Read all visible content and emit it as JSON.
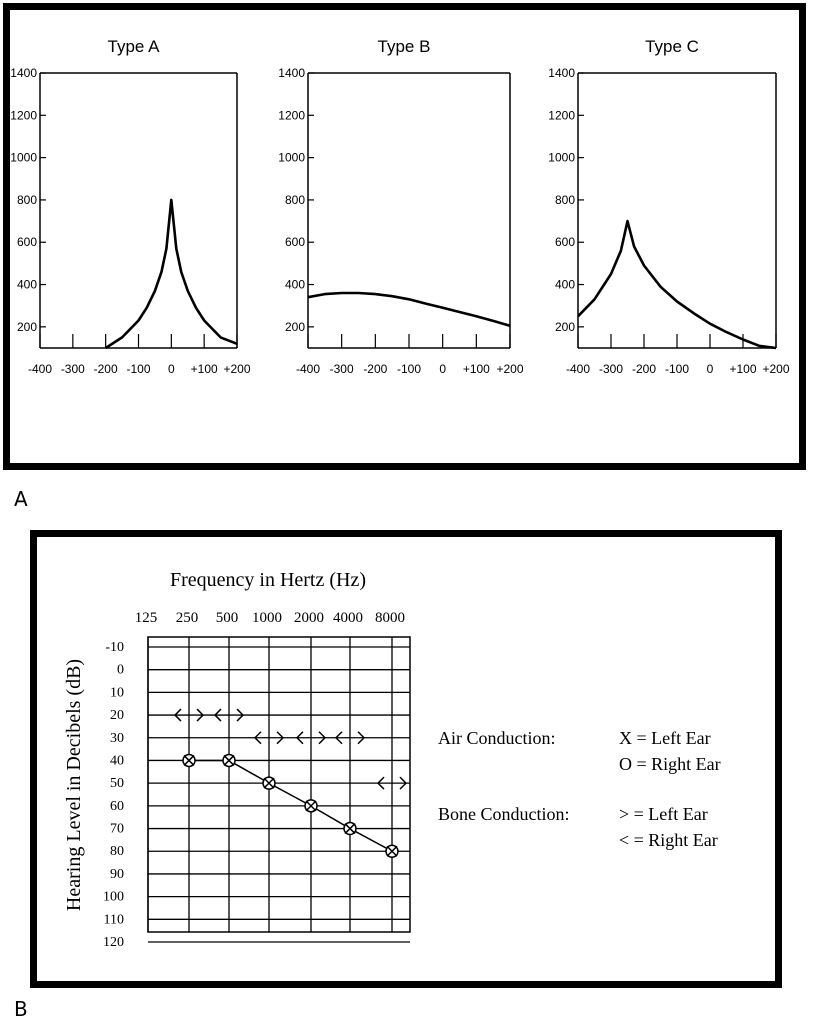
{
  "panel_labels": {
    "a": "A",
    "b": "B"
  },
  "chart_data": [
    {
      "type": "line",
      "title": "Type A",
      "x_ticks": [
        "-400",
        "-300",
        "-200",
        "-100",
        "0",
        "+100",
        "+200"
      ],
      "y_ticks": [
        "200",
        "400",
        "600",
        "800",
        "1000",
        "1200",
        "1400"
      ],
      "xlim": [
        -400,
        200
      ],
      "ylim": [
        100,
        1400
      ],
      "x": [
        -200,
        -150,
        -100,
        -75,
        -50,
        -30,
        -15,
        0,
        15,
        30,
        50,
        75,
        100,
        150,
        200
      ],
      "y": [
        100,
        150,
        230,
        290,
        370,
        460,
        570,
        800,
        570,
        460,
        370,
        290,
        230,
        150,
        120
      ]
    },
    {
      "type": "line",
      "title": "Type B",
      "x_ticks": [
        "-400",
        "-300",
        "-200",
        "-100",
        "0",
        "+100",
        "+200"
      ],
      "y_ticks": [
        "200",
        "400",
        "600",
        "800",
        "1000",
        "1200",
        "1400"
      ],
      "xlim": [
        -400,
        200
      ],
      "ylim": [
        100,
        1400
      ],
      "x": [
        -400,
        -350,
        -300,
        -250,
        -200,
        -150,
        -100,
        -50,
        0,
        50,
        100,
        150,
        200
      ],
      "y": [
        340,
        355,
        360,
        360,
        355,
        345,
        330,
        310,
        290,
        270,
        250,
        228,
        205
      ]
    },
    {
      "type": "line",
      "title": "Type C",
      "x_ticks": [
        "-400",
        "-300",
        "-200",
        "-100",
        "0",
        "+100",
        "+200"
      ],
      "y_ticks": [
        "200",
        "400",
        "600",
        "800",
        "1000",
        "1200",
        "1400"
      ],
      "xlim": [
        -400,
        200
      ],
      "ylim": [
        100,
        1400
      ],
      "x": [
        -400,
        -350,
        -300,
        -270,
        -250,
        -230,
        -200,
        -150,
        -100,
        -50,
        0,
        50,
        100,
        150,
        200
      ],
      "y": [
        250,
        330,
        450,
        560,
        700,
        580,
        490,
        390,
        320,
        265,
        215,
        175,
        140,
        110,
        100
      ]
    },
    {
      "type": "scatter",
      "title": "Frequency in Hertz (Hz)",
      "ylabel": "Hearing Level in Decibels (dB)",
      "x_ticks": [
        "125",
        "250",
        "500",
        "1000",
        "2000",
        "4000",
        "8000"
      ],
      "y_ticks": [
        "-10",
        "0",
        "10",
        "20",
        "30",
        "40",
        "50",
        "60",
        "70",
        "80",
        "90",
        "100",
        "110",
        "120"
      ],
      "ylim": [
        -10,
        120
      ],
      "air_conduction": {
        "frequencies": [
          "250",
          "500",
          "1000",
          "2000",
          "4000",
          "8000"
        ],
        "levels": [
          40,
          40,
          50,
          60,
          70,
          80
        ]
      },
      "bone_conduction": {
        "frequencies": [
          "250",
          "500",
          "1000",
          "2000",
          "4000",
          "8000"
        ],
        "levels": [
          20,
          20,
          30,
          30,
          30,
          50
        ]
      },
      "legend": {
        "air_title": "Air Conduction:",
        "air_left": "X = Left Ear",
        "air_right": "O = Right Ear",
        "bone_title": "Bone Conduction:",
        "bone_left": "> = Left Ear",
        "bone_right": "< = Right Ear"
      }
    }
  ]
}
